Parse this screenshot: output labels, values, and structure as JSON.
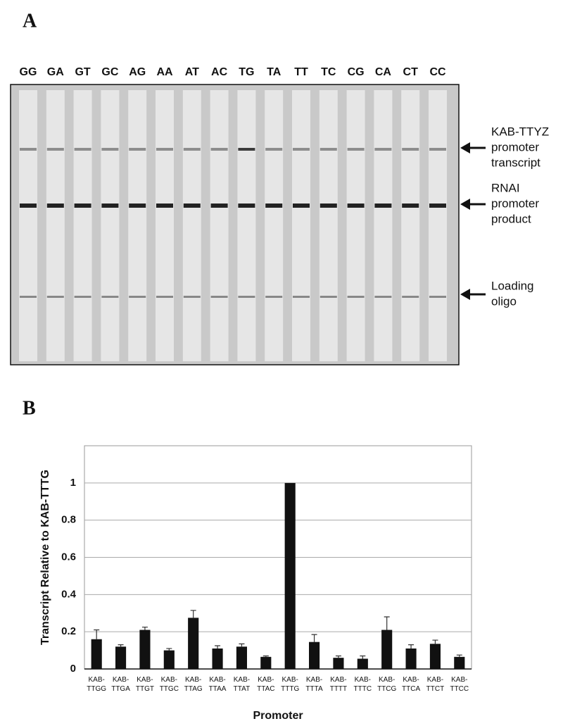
{
  "panel_labels": [
    "A",
    "B"
  ],
  "gel": {
    "lanes": [
      "GG",
      "GA",
      "GT",
      "GC",
      "AG",
      "AA",
      "AT",
      "AC",
      "TG",
      "TA",
      "TT",
      "TC",
      "CG",
      "CA",
      "CT",
      "CC"
    ],
    "bands": [
      {
        "lines": [
          "KAB-TTYZ",
          "promoter",
          "transcript"
        ]
      },
      {
        "lines": [
          "RNAI",
          "promoter",
          "product"
        ]
      },
      {
        "lines": [
          "Loading",
          "oligo"
        ]
      }
    ]
  },
  "chart_data": {
    "type": "bar",
    "y_label": "Transcript Relative to KAB-TTTG",
    "x_label": "Promoter",
    "categories": [
      "KAB-TTGG",
      "KAB-TTGA",
      "KAB-TTGT",
      "KAB-TTGC",
      "KAB-TTAG",
      "KAB-TTAA",
      "KAB-TTAT",
      "KAB-TTAC",
      "KAB-TTTG",
      "KAB-TTTA",
      "KAB-TTTT",
      "KAB-TTTC",
      "KAB-TTCG",
      "KAB-TTCA",
      "KAB-TTCT",
      "KAB-TTCC"
    ],
    "values": [
      0.16,
      0.12,
      0.21,
      0.1,
      0.275,
      0.11,
      0.12,
      0.065,
      1.0,
      0.145,
      0.06,
      0.055,
      0.21,
      0.11,
      0.135,
      0.065
    ],
    "errors": [
      0.05,
      0.01,
      0.015,
      0.01,
      0.04,
      0.015,
      0.015,
      0.005,
      null,
      0.04,
      0.01,
      0.015,
      0.07,
      0.02,
      0.02,
      0.01
    ],
    "color": "#111111",
    "ylim": [
      0,
      1.2
    ],
    "yticks": [
      0,
      0.2,
      0.4,
      0.6,
      0.8,
      1
    ],
    "grid": true
  }
}
